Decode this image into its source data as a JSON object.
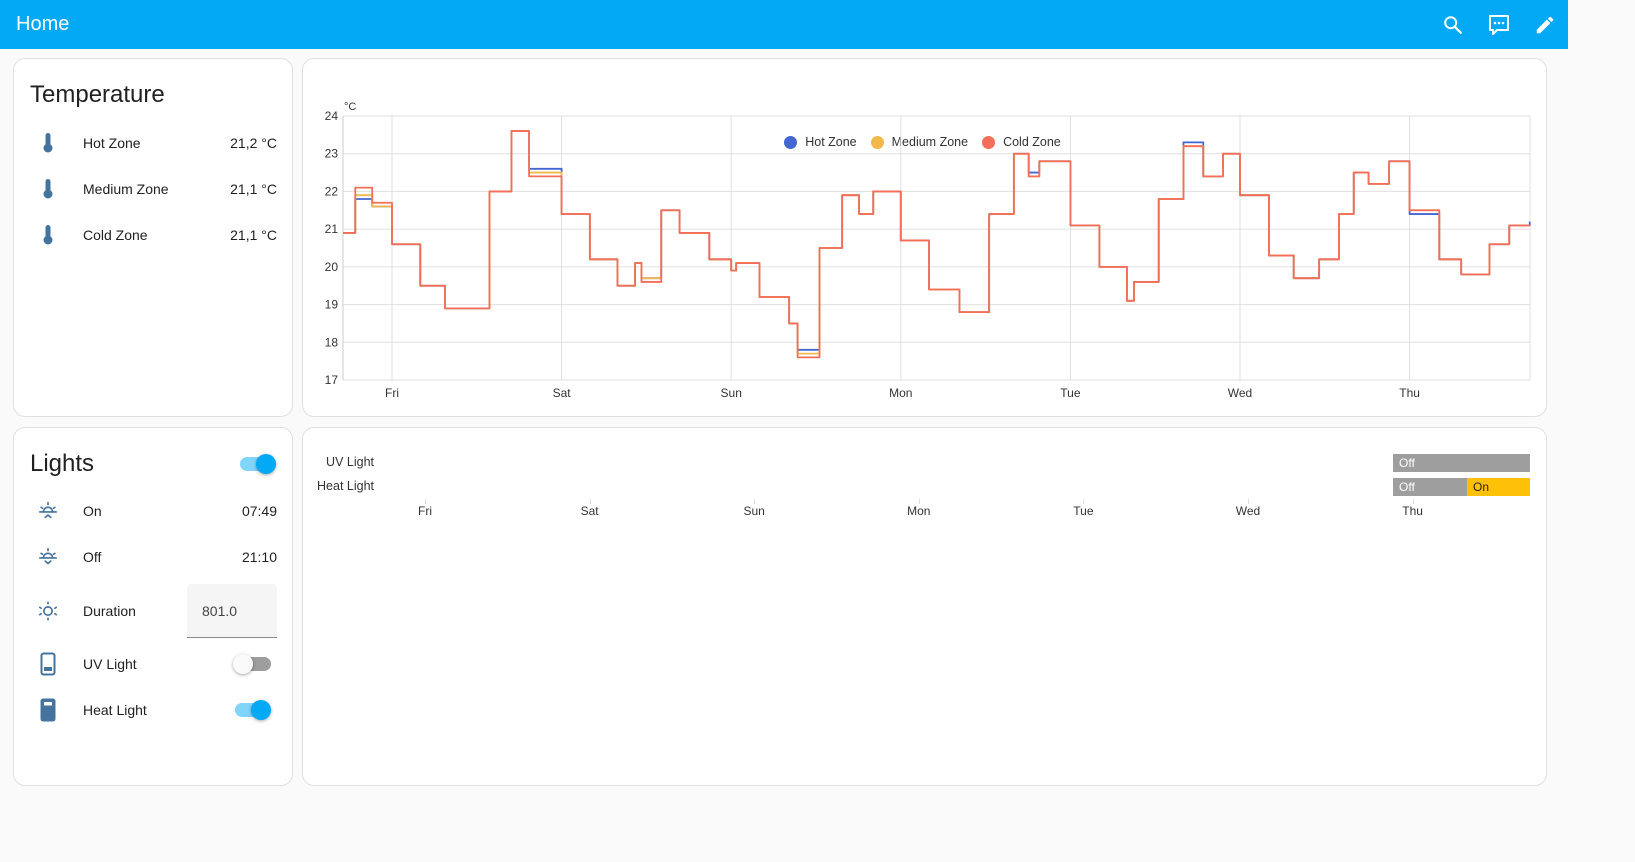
{
  "header": {
    "title": "Home",
    "actions": [
      {
        "name": "search",
        "icon": "search-icon"
      },
      {
        "name": "assist",
        "icon": "message-dots-icon"
      },
      {
        "name": "edit",
        "icon": "pencil-icon"
      }
    ],
    "color": "#03a9f4"
  },
  "temperature_card": {
    "title": "Temperature",
    "entities": [
      {
        "name": "Hot Zone",
        "value": "21,2 °C",
        "icon": "thermometer-icon"
      },
      {
        "name": "Medium Zone",
        "value": "21,1 °C",
        "icon": "thermometer-icon"
      },
      {
        "name": "Cold Zone",
        "value": "21,1 °C",
        "icon": "thermometer-icon"
      }
    ]
  },
  "lights_card": {
    "title": "Lights",
    "master_toggle": true,
    "entities": [
      {
        "name": "On",
        "value": "07:49",
        "icon": "sun-rise-icon"
      },
      {
        "name": "Off",
        "value": "21:10",
        "icon": "sun-set-icon"
      },
      {
        "name": "Duration",
        "value": "801.0",
        "icon": "sun-icon",
        "type": "input"
      },
      {
        "name": "UV Light",
        "state": false,
        "icon": "light-off-icon",
        "type": "toggle"
      },
      {
        "name": "Heat Light",
        "state": true,
        "icon": "light-on-icon",
        "type": "toggle"
      }
    ]
  },
  "timeline_card": {
    "rows": [
      {
        "label": "UV Light",
        "segments": [
          {
            "label": "Off",
            "from": 1393,
            "to": 1530,
            "color": "#9e9e9e"
          }
        ]
      },
      {
        "label": "Heat Light",
        "segments": [
          {
            "label": "Off",
            "from": 1393,
            "to": 1467,
            "color": "#9e9e9e"
          },
          {
            "label": "On",
            "from": 1467,
            "to": 1530,
            "color": "#ffc107"
          }
        ]
      }
    ],
    "x_labels": [
      "Fri",
      "Sat",
      "Sun",
      "Mon",
      "Tue",
      "Wed",
      "Thu"
    ]
  },
  "chart_data": {
    "type": "line",
    "title": "",
    "ylabel": "°C",
    "xlabel": "",
    "ylim": [
      17,
      24
    ],
    "yticks": [
      17,
      18,
      19,
      20,
      21,
      22,
      23,
      24
    ],
    "categories": [
      "Fri",
      "Sat",
      "Sun",
      "Mon",
      "Tue",
      "Wed",
      "Thu"
    ],
    "legend_position": "top",
    "grid": true,
    "x_hours_from_fri_midnight": [
      -7,
      -5.2,
      -2.8,
      0,
      4,
      7.5,
      9.3,
      13.8,
      16.9,
      19.4,
      24,
      28,
      31.9,
      34.4,
      35.3,
      38.1,
      40.7,
      44.9,
      48,
      48.7,
      52,
      56.2,
      57.4,
      60.5,
      63.7,
      66.1,
      68.1,
      72,
      76,
      80.3,
      84.5,
      88,
      90.1,
      91.6,
      96,
      100.1,
      104,
      105,
      108.5,
      112,
      114.8,
      117.6,
      120,
      124.1,
      127.6,
      131.2,
      134,
      136.1,
      138.2,
      141.1,
      144,
      148.2,
      151.3,
      155.3,
      158.1,
      161
    ],
    "series": [
      {
        "name": "Hot Zone",
        "color": "#4366d2",
        "values": [
          20.9,
          21.8,
          21.6,
          20.6,
          19.5,
          18.9,
          18.9,
          22.0,
          23.6,
          22.6,
          21.4,
          20.2,
          19.5,
          20.1,
          19.7,
          21.5,
          20.9,
          20.2,
          19.9,
          20.1,
          19.2,
          18.5,
          17.8,
          20.5,
          21.9,
          21.4,
          22.0,
          20.7,
          19.4,
          18.8,
          21.4,
          23.0,
          22.5,
          22.8,
          21.1,
          20.0,
          19.1,
          19.6,
          21.8,
          23.3,
          22.4,
          23.0,
          21.9,
          20.3,
          19.7,
          20.2,
          21.4,
          22.5,
          22.2,
          22.8,
          21.4,
          20.2,
          19.8,
          20.6,
          21.1,
          21.2
        ]
      },
      {
        "name": "Medium Zone",
        "color": "#f1b94c",
        "values": [
          20.9,
          21.9,
          21.6,
          20.6,
          19.5,
          18.9,
          18.9,
          22.0,
          23.6,
          22.5,
          21.4,
          20.2,
          19.5,
          20.1,
          19.7,
          21.5,
          20.9,
          20.2,
          19.9,
          20.1,
          19.2,
          18.5,
          17.7,
          20.5,
          21.9,
          21.4,
          22.0,
          20.7,
          19.4,
          18.8,
          21.4,
          23.0,
          22.4,
          22.8,
          21.1,
          20.0,
          19.1,
          19.6,
          21.8,
          23.2,
          22.4,
          23.0,
          21.9,
          20.3,
          19.7,
          20.2,
          21.4,
          22.5,
          22.2,
          22.8,
          21.5,
          20.2,
          19.8,
          20.6,
          21.1,
          21.1
        ]
      },
      {
        "name": "Cold Zone",
        "color": "#f46e5a",
        "values": [
          20.9,
          22.1,
          21.7,
          20.6,
          19.5,
          18.9,
          18.9,
          22.0,
          23.6,
          22.4,
          21.4,
          20.2,
          19.5,
          20.1,
          19.6,
          21.5,
          20.9,
          20.2,
          19.9,
          20.1,
          19.2,
          18.5,
          17.6,
          20.5,
          21.9,
          21.4,
          22.0,
          20.7,
          19.4,
          18.8,
          21.4,
          23.0,
          22.4,
          22.8,
          21.1,
          20.0,
          19.1,
          19.6,
          21.8,
          23.2,
          22.4,
          23.0,
          21.9,
          20.3,
          19.7,
          20.2,
          21.4,
          22.5,
          22.2,
          22.8,
          21.5,
          20.2,
          19.8,
          20.6,
          21.1,
          21.1
        ]
      }
    ]
  }
}
